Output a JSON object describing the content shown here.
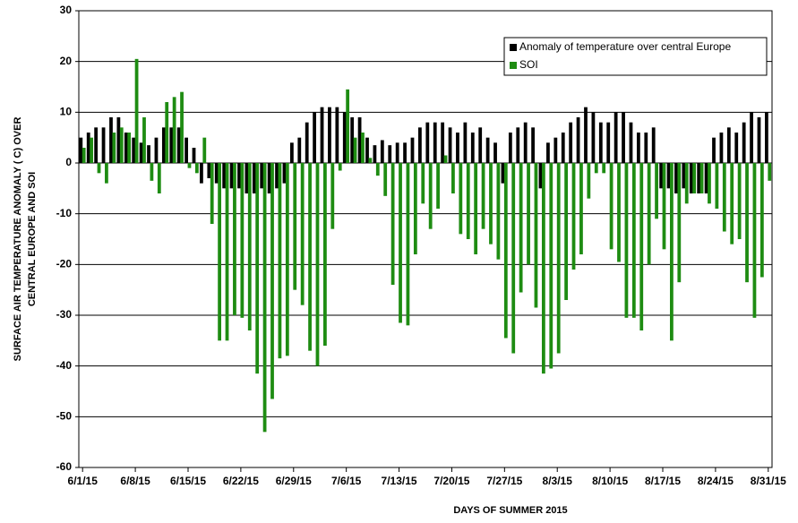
{
  "chart_data": {
    "type": "bar",
    "y_label": [
      "SURFACE AIR TEMPERATURE ANOMALY ( C) OVER",
      "CENTRAL EUROPE AND SOI"
    ],
    "x_label": "DAYS OF SUMMER 2015",
    "categories": [
      "6/1/15",
      null,
      null,
      null,
      null,
      null,
      null,
      "6/8/15",
      null,
      null,
      null,
      null,
      null,
      null,
      "6/15/15",
      null,
      null,
      null,
      null,
      null,
      null,
      "6/22/15",
      null,
      null,
      null,
      null,
      null,
      null,
      "6/29/15",
      null,
      null,
      null,
      null,
      null,
      null,
      "7/6/15",
      null,
      null,
      null,
      null,
      null,
      null,
      "7/13/15",
      null,
      null,
      null,
      null,
      null,
      null,
      "7/20/15",
      null,
      null,
      null,
      null,
      null,
      null,
      "7/27/15",
      null,
      null,
      null,
      null,
      null,
      null,
      "8/3/15",
      null,
      null,
      null,
      null,
      null,
      null,
      "8/10/15",
      null,
      null,
      null,
      null,
      null,
      null,
      "8/17/15",
      null,
      null,
      null,
      null,
      null,
      null,
      "8/24/15",
      null,
      null,
      null,
      null,
      null,
      null,
      "8/31/15"
    ],
    "series": [
      {
        "name": "Anomaly of temperature over central Europe",
        "color": "#000000",
        "values": [
          5,
          6,
          7,
          7,
          9,
          9,
          6,
          5,
          4,
          3.5,
          5,
          7,
          7,
          7,
          5,
          3,
          -4,
          -3,
          -4,
          -5,
          -5,
          -5,
          -6,
          -6,
          -5,
          -6,
          -5,
          -4,
          4,
          5,
          8,
          10,
          11,
          11,
          11,
          10,
          9,
          9,
          5,
          3.5,
          4.5,
          3.5,
          4,
          4,
          5,
          7,
          8,
          8,
          8,
          7,
          6,
          8,
          6,
          7,
          5,
          4,
          -4,
          6,
          7,
          8,
          7,
          -5,
          4,
          5,
          6,
          8,
          9,
          11,
          10,
          8,
          8,
          10,
          10,
          8,
          6,
          6,
          7,
          -5,
          -5,
          -6,
          -5,
          -6,
          -6,
          -6,
          5,
          6,
          7,
          6,
          8,
          10,
          9,
          10
        ]
      },
      {
        "name": "SOI",
        "color": "#1e8c12",
        "values": [
          3,
          5,
          -2,
          -4,
          6,
          7,
          6,
          20.5,
          9,
          -3.5,
          -6,
          12,
          13,
          14,
          -1,
          -2,
          5,
          -12,
          -35,
          -35,
          -30,
          -30.5,
          -33,
          -41.5,
          -53,
          -46.5,
          -38.5,
          -38,
          -25,
          -28,
          -37,
          -40,
          -36,
          -13,
          -1.5,
          14.5,
          5,
          6,
          1,
          -2.5,
          -6.5,
          -24,
          -31.5,
          -32,
          -18,
          -8,
          -13,
          -9,
          1.5,
          -6,
          -14,
          -15,
          -18,
          -13,
          -16,
          -19,
          -34.5,
          -37.5,
          -25.5,
          -20,
          -28.5,
          -41.5,
          -40.5,
          -37.5,
          -27,
          -21,
          -18,
          -7,
          -2,
          -2,
          -17,
          -19.5,
          -30.5,
          -30.5,
          -33,
          -20,
          -11,
          -17,
          -35,
          -23.5,
          -8,
          -6,
          -6,
          -8,
          -9,
          -13.5,
          -16,
          -15,
          -23.5,
          -30.5,
          -22.5,
          -3.5
        ]
      }
    ],
    "ylim": [
      -60,
      30
    ],
    "yticks": [
      -60,
      -50,
      -40,
      -30,
      -20,
      -10,
      0,
      10,
      20,
      30
    ],
    "grid": true,
    "legend": "upper right"
  }
}
